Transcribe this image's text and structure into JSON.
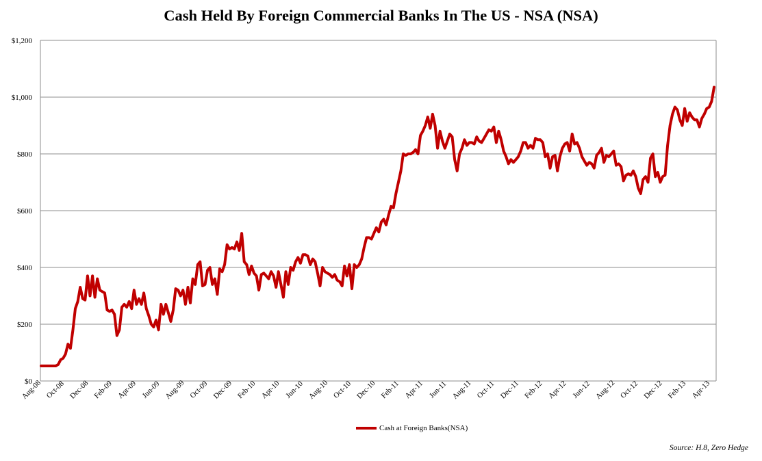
{
  "chart_data": {
    "type": "line",
    "title": "Cash Held By Foreign Commercial Banks In The US - NSA (NSA)",
    "xlabel": "",
    "ylabel": "",
    "ylim": [
      0,
      1200
    ],
    "y_ticks": [
      "$0",
      "$200",
      "$400",
      "$600",
      "$800",
      "$1,000",
      "$1,200"
    ],
    "y_tick_values": [
      0,
      200,
      400,
      600,
      800,
      1000,
      1200
    ],
    "x_ticks": [
      "Aug-08",
      "Oct-08",
      "Dec-08",
      "Feb-09",
      "Apr-09",
      "Jun-09",
      "Aug-09",
      "Oct-09",
      "Dec-09",
      "Feb-10",
      "Apr-10",
      "Jun-10",
      "Aug-10",
      "Oct-10",
      "Dec-10",
      "Feb-11",
      "Apr-11",
      "Jun-11",
      "Aug-11",
      "Oct-11",
      "Dec-11",
      "Feb-12",
      "Apr-12",
      "Jun-12",
      "Aug-12",
      "Oct-12",
      "Dec-12",
      "Feb-13",
      "Apr-13"
    ],
    "legend": "bottom-center",
    "grid": true,
    "series": [
      {
        "name": "Cash at Foreign Banks(NSA)",
        "color": "#c00000",
        "values": [
          53,
          53,
          53,
          53,
          53,
          53,
          53,
          58,
          75,
          80,
          95,
          130,
          115,
          180,
          255,
          280,
          330,
          290,
          285,
          370,
          300,
          370,
          295,
          360,
          320,
          315,
          310,
          250,
          245,
          250,
          235,
          160,
          180,
          260,
          270,
          260,
          280,
          255,
          320,
          270,
          290,
          270,
          310,
          255,
          230,
          200,
          190,
          215,
          180,
          270,
          235,
          270,
          240,
          210,
          250,
          325,
          320,
          300,
          320,
          270,
          330,
          275,
          360,
          340,
          410,
          420,
          335,
          340,
          390,
          400,
          340,
          360,
          305,
          395,
          385,
          410,
          480,
          465,
          470,
          465,
          490,
          460,
          520,
          420,
          410,
          375,
          405,
          380,
          370,
          320,
          375,
          380,
          370,
          360,
          385,
          370,
          330,
          385,
          340,
          295,
          385,
          340,
          400,
          390,
          420,
          435,
          415,
          445,
          445,
          440,
          410,
          430,
          420,
          380,
          335,
          400,
          385,
          380,
          375,
          365,
          375,
          355,
          350,
          335,
          405,
          370,
          410,
          325,
          410,
          400,
          410,
          430,
          470,
          505,
          505,
          500,
          520,
          540,
          525,
          560,
          570,
          550,
          585,
          615,
          610,
          660,
          700,
          740,
          800,
          795,
          800,
          800,
          805,
          815,
          800,
          865,
          880,
          900,
          930,
          890,
          940,
          900,
          820,
          880,
          845,
          820,
          845,
          870,
          860,
          780,
          740,
          800,
          820,
          850,
          830,
          840,
          840,
          835,
          860,
          845,
          840,
          855,
          870,
          885,
          880,
          895,
          840,
          880,
          850,
          810,
          790,
          765,
          780,
          770,
          780,
          790,
          810,
          840,
          840,
          820,
          830,
          820,
          855,
          850,
          850,
          840,
          790,
          800,
          750,
          790,
          795,
          740,
          790,
          820,
          835,
          840,
          810,
          870,
          835,
          840,
          820,
          790,
          775,
          760,
          770,
          765,
          750,
          795,
          805,
          820,
          770,
          795,
          790,
          800,
          810,
          760,
          765,
          755,
          705,
          725,
          730,
          725,
          740,
          720,
          680,
          660,
          710,
          720,
          700,
          785,
          800,
          720,
          735,
          700,
          720,
          725,
          830,
          900,
          940,
          965,
          955,
          920,
          900,
          960,
          915,
          945,
          930,
          920,
          920,
          895,
          925,
          940,
          960,
          965,
          985,
          1035
        ]
      }
    ],
    "source": "Source: H.8, Zero Hedge"
  }
}
